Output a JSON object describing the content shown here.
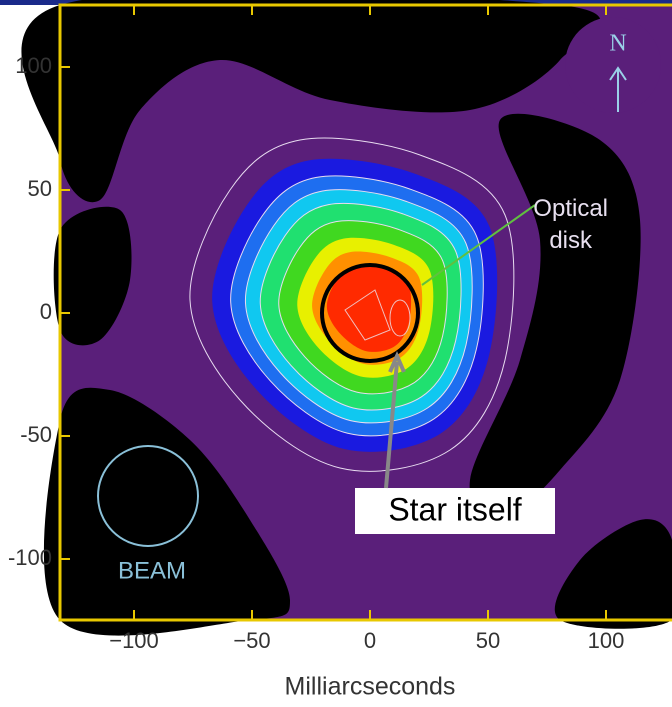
{
  "chart_data": {
    "type": "contour",
    "xlabel": "Milliarcseconds",
    "xlim": [
      -131,
      128
    ],
    "ylim": [
      -125,
      125
    ],
    "xticks": [
      {
        "value": -100,
        "label": "−100"
      },
      {
        "value": -50,
        "label": "−50"
      },
      0,
      50,
      100
    ],
    "yticks": [
      {
        "value": -100,
        "label": "-100"
      },
      {
        "value": -50,
        "label": "-50"
      },
      0,
      50,
      100
    ],
    "annotations": {
      "north": "N",
      "optical": "Optical disk",
      "star": "Star itself",
      "beam": "BEAM"
    }
  }
}
